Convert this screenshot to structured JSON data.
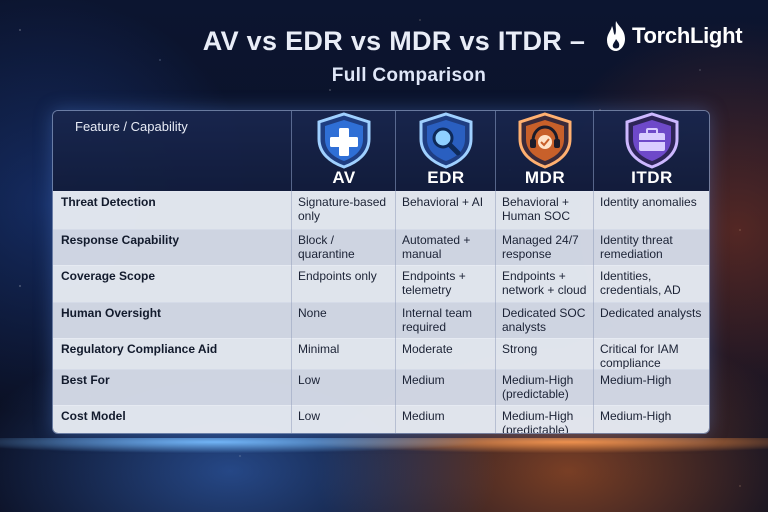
{
  "title": {
    "line1": "AV vs EDR vs MDR vs ITDR –",
    "line2": "Full Comparison"
  },
  "logo": {
    "name": "TorchLight",
    "icon": "flame-icon"
  },
  "table": {
    "feature_header": "Feature / Capability",
    "columns": [
      {
        "label": "AV",
        "icon": "medical-cross-shield-icon",
        "color": "#5aa8ff"
      },
      {
        "label": "EDR",
        "icon": "magnifier-shield-icon",
        "color": "#5aa8ff"
      },
      {
        "label": "MDR",
        "icon": "headset-shield-icon",
        "color": "#ff8a3d"
      },
      {
        "label": "ITDR",
        "icon": "briefcase-shield-icon",
        "color": "#9b6cff"
      }
    ],
    "rows": [
      {
        "feature": "Threat Detection",
        "values": [
          "Signature-based only",
          "Behavioral + AI",
          "Behavioral + Human SOC",
          "Identity anomalies"
        ]
      },
      {
        "feature": "Response Capability",
        "values": [
          "Block / quarantine",
          "Automated + manual",
          "Managed 24/7 response",
          "Identity threat remediation"
        ]
      },
      {
        "feature": "Coverage Scope",
        "values": [
          "Endpoints only",
          "Endpoints + telemetry",
          "Endpoints + network + cloud",
          "Identities, credentials, AD"
        ]
      },
      {
        "feature": "Human Oversight",
        "values": [
          "None",
          "Internal team required",
          "Dedicated SOC analysts",
          "Dedicated analysts"
        ]
      },
      {
        "feature": "Regulatory Compliance Aid",
        "values": [
          "Minimal",
          "Moderate",
          "Strong",
          "Critical for IAM compliance"
        ]
      },
      {
        "feature": "Best For",
        "values": [
          "Low",
          "Medium",
          "Medium-High (predictable)",
          "Medium-High"
        ]
      },
      {
        "feature": "Cost Model",
        "values": [
          "Low",
          "Medium",
          "Medium-High (predictable)",
          "Medium-High"
        ]
      }
    ]
  }
}
